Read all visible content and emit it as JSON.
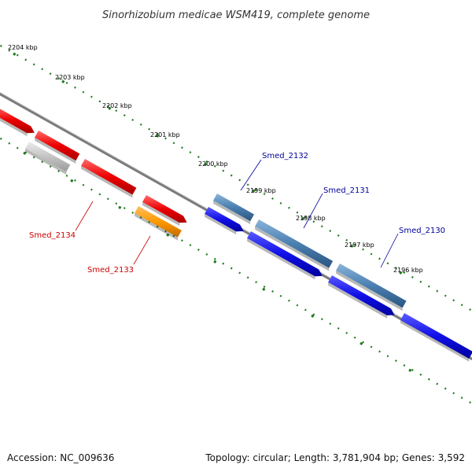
{
  "title": "Sinorhizobium medicae WSM419, complete genome",
  "accession": "Accession: NC_009636",
  "summary": "Topology: circular; Length: 3,781,904 bp; Genes: 3,592",
  "colors": {
    "background": "#ffffff",
    "backbone": "#8a8a8a",
    "ticks": "#1f7a1f",
    "red": "#e80000",
    "gray": "#c8c8c8",
    "orange": "#ff9a00",
    "steelblue": "#4a7fb0",
    "blue": "#1010e0",
    "label_red": "#cc0000",
    "label_blue": "#000099"
  },
  "ticks": [
    {
      "label": "2204 kbp"
    },
    {
      "label": "2203 kbp"
    },
    {
      "label": "2202 kbp"
    },
    {
      "label": "2201 kbp"
    },
    {
      "label": "2200 kbp"
    },
    {
      "label": "2199 kbp"
    },
    {
      "label": "2198 kbp"
    },
    {
      "label": "2197 kbp"
    },
    {
      "label": "2196 kbp"
    }
  ],
  "gene_labels": [
    {
      "name": "Smed_2132"
    },
    {
      "name": "Smed_2131"
    },
    {
      "name": "Smed_2130"
    },
    {
      "name": "Smed_2134"
    },
    {
      "name": "Smed_2133"
    }
  ]
}
